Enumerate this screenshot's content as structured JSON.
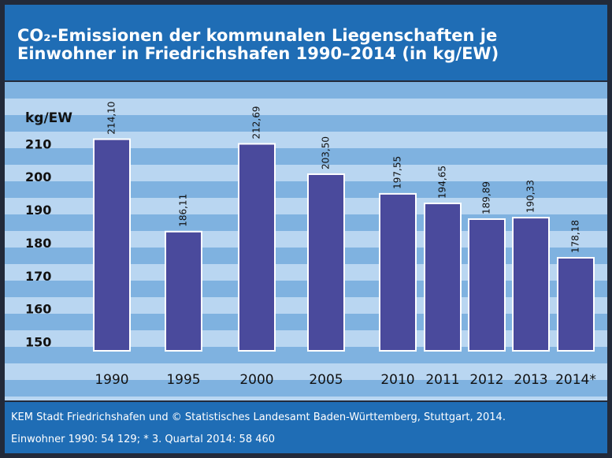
{
  "chart_data": {
    "type": "bar",
    "title": "CO₂-Emissionen der kommunalen Liegenschaften je Einwohner in Friedrichshafen 1990–2014 (in kg/EW)",
    "y_label": "kg/EW",
    "categories": [
      "1990",
      "1995",
      "2000",
      "2005",
      "2010",
      "2011",
      "2012",
      "2013",
      "2014*"
    ],
    "values": [
      214.1,
      186.11,
      212.69,
      203.5,
      197.55,
      194.65,
      189.89,
      190.33,
      178.18
    ],
    "value_labels": [
      "214,10",
      "186,11",
      "212,69",
      "203,50",
      "197,55",
      "194,65",
      "189,89",
      "190,33",
      "178,18"
    ],
    "color": "#4a4a9c",
    "ylim": [
      150,
      230
    ],
    "yticks": [
      150,
      160,
      170,
      180,
      190,
      200,
      210
    ],
    "notes": [
      "KEM Stadt Friedrichshafen und © Statistisches Landesamt Baden-Württemberg, Stuttgart, 2014.",
      "Einwohner 1990: 54 129; * 3. Quartal 2014: 58 460"
    ]
  }
}
